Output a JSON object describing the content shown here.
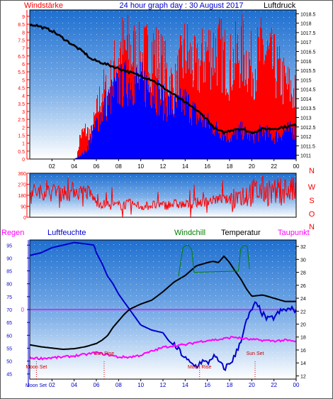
{
  "header": {
    "left_label": "Windstärke",
    "title": "24 hour graph day : 30 August 2017",
    "right_label": "Luftdruck"
  },
  "colors": {
    "wind_red": "#ff0000",
    "wind_blue": "#0000ff",
    "pressure": "#000000",
    "direction": "#ff0000",
    "humidity": "#0000cc",
    "temperature": "#000000",
    "dewpoint": "#ff00ff",
    "windchill": "#008000",
    "rain": "#ff00ff",
    "events": "#cc0000",
    "axis_left": "#ff0000",
    "axis_hum": "#0000cc"
  },
  "chart_data": [
    {
      "type": "line",
      "name": "wind-pressure",
      "x_ticks": [
        "02",
        "04",
        "06",
        "08",
        "10",
        "12",
        "14",
        "16",
        "18",
        "20",
        "22",
        "00"
      ],
      "y_left_ticks": [
        "0",
        "0.5",
        "1",
        "1.5",
        "2",
        "2.5",
        "3",
        "3.5",
        "4",
        "4.5",
        "5",
        "5.5",
        "6",
        "6.5",
        "7",
        "7.5",
        "8",
        "8.5",
        "9"
      ],
      "y_right_ticks": [
        "1011",
        "1011.5",
        "1012",
        "1012.5",
        "1013",
        "1013.5",
        "1014",
        "1014.5",
        "1015",
        "1015.5",
        "1016",
        "1016.5",
        "1017",
        "1017.5",
        "1018",
        "1018.5"
      ],
      "ylim_left": [
        0,
        9.4
      ],
      "ylim_right": [
        1010.8,
        1018.7
      ],
      "xlim": [
        0,
        24
      ],
      "series": [
        {
          "key": "pressure",
          "values": [
            [
              0,
              1017.9
            ],
            [
              0.5,
              1017.9
            ],
            [
              1,
              1017.8
            ],
            [
              1.5,
              1017.7
            ],
            [
              2,
              1017.6
            ],
            [
              2.5,
              1017.4
            ],
            [
              3,
              1017.2
            ],
            [
              3.5,
              1017.0
            ],
            [
              4,
              1016.8
            ],
            [
              4.5,
              1016.6
            ],
            [
              5,
              1016.4
            ],
            [
              5.5,
              1016.1
            ],
            [
              6,
              1016.0
            ],
            [
              7,
              1015.8
            ],
            [
              8,
              1015.6
            ],
            [
              9,
              1015.4
            ],
            [
              10,
              1015.2
            ],
            [
              11,
              1015.0
            ],
            [
              12,
              1014.6
            ],
            [
              13,
              1014.2
            ],
            [
              14,
              1013.8
            ],
            [
              15,
              1013.4
            ],
            [
              16,
              1012.9
            ],
            [
              16.5,
              1012.5
            ],
            [
              17,
              1012.3
            ],
            [
              17.5,
              1012.2
            ],
            [
              18,
              1012.3
            ],
            [
              18.5,
              1012.4
            ],
            [
              19,
              1012.4
            ],
            [
              19.5,
              1012.3
            ],
            [
              20,
              1012.2
            ],
            [
              21,
              1012.4
            ],
            [
              22,
              1012.4
            ],
            [
              23,
              1012.5
            ],
            [
              24,
              1012.6
            ]
          ]
        },
        {
          "key": "gust_envelope",
          "values": [
            [
              0,
              0
            ],
            [
              4.2,
              0
            ],
            [
              4.5,
              2
            ],
            [
              5,
              2.5
            ],
            [
              5.5,
              2.2
            ],
            [
              6,
              4
            ],
            [
              6.5,
              6
            ],
            [
              7,
              5.5
            ],
            [
              8,
              9.4
            ],
            [
              9,
              9.4
            ],
            [
              10,
              8.5
            ],
            [
              11,
              9.4
            ],
            [
              12,
              8
            ],
            [
              13,
              6
            ],
            [
              14,
              9.4
            ],
            [
              15,
              7.5
            ],
            [
              16,
              9.4
            ],
            [
              17,
              9.4
            ],
            [
              18,
              8
            ],
            [
              19,
              9.4
            ],
            [
              20,
              8
            ],
            [
              21,
              9.4
            ],
            [
              22,
              8
            ],
            [
              23,
              6.5
            ],
            [
              24,
              5.5
            ]
          ]
        },
        {
          "key": "average_envelope",
          "values": [
            [
              0,
              0
            ],
            [
              4,
              0
            ],
            [
              5,
              0.5
            ],
            [
              6,
              2.5
            ],
            [
              7,
              4
            ],
            [
              8,
              5
            ],
            [
              9,
              5.5
            ],
            [
              10,
              5.2
            ],
            [
              11,
              5
            ],
            [
              12,
              4
            ],
            [
              13,
              3.5
            ],
            [
              14,
              4
            ],
            [
              15,
              3
            ],
            [
              16,
              2.5
            ],
            [
              17,
              2
            ],
            [
              18,
              1.5
            ],
            [
              19,
              2
            ],
            [
              20,
              1.5
            ],
            [
              21,
              2
            ],
            [
              22,
              1.5
            ],
            [
              23,
              2
            ],
            [
              24,
              2
            ]
          ]
        }
      ]
    },
    {
      "type": "line",
      "name": "wind-direction",
      "x_ticks": [
        "02",
        "04",
        "06",
        "08",
        "10",
        "12",
        "14",
        "16",
        "18",
        "20",
        "22",
        "00"
      ],
      "y_ticks": [
        "0",
        "90",
        "180",
        "270",
        "360"
      ],
      "compass_labels": [
        "N",
        "W",
        "S",
        "O",
        "N"
      ],
      "ylim": [
        0,
        360
      ],
      "series": [
        {
          "key": "direction",
          "values": [
            [
              0,
              225
            ],
            [
              0.5,
              210
            ],
            [
              1,
              200
            ],
            [
              1.5,
              220
            ],
            [
              2,
              190
            ],
            [
              2.5,
              230
            ],
            [
              3,
              210
            ],
            [
              3.5,
              190
            ],
            [
              4,
              230
            ],
            [
              4.5,
              200
            ],
            [
              5,
              210
            ],
            [
              5.5,
              190
            ],
            [
              6,
              120
            ],
            [
              7,
              100
            ],
            [
              8,
              95
            ],
            [
              9,
              110
            ],
            [
              10,
              90
            ],
            [
              11,
              100
            ],
            [
              12,
              95
            ],
            [
              13,
              110
            ],
            [
              14,
              100
            ],
            [
              15,
              120
            ],
            [
              16,
              130
            ],
            [
              17,
              150
            ],
            [
              18,
              140
            ],
            [
              19,
              180
            ],
            [
              20,
              200
            ],
            [
              21,
              220
            ],
            [
              22,
              190
            ],
            [
              23,
              230
            ],
            [
              24,
              210
            ]
          ]
        }
      ]
    },
    {
      "type": "line",
      "name": "humidity-temperature",
      "x_ticks": [
        "02",
        "04",
        "06",
        "08",
        "10",
        "12",
        "14",
        "16",
        "18",
        "20",
        "22",
        "00"
      ],
      "y_left_ticks": [
        "45",
        "50",
        "55",
        "60",
        "65",
        "70",
        "75",
        "80",
        "85",
        "90",
        "95"
      ],
      "y_right_ticks": [
        "12",
        "14",
        "16",
        "18",
        "20",
        "22",
        "24",
        "26",
        "28",
        "30",
        "32"
      ],
      "ylim_left": [
        43,
        97
      ],
      "ylim_right": [
        11.5,
        33.0
      ],
      "rain_zero_label": "0",
      "labels": {
        "rain": "Regen",
        "humidity": "Luftfeuchte",
        "windchill": "Windchill",
        "temperature": "Temperatur",
        "dewpoint": "Taupunkt"
      },
      "events": [
        {
          "key": "moon_set",
          "label": "Moon Set",
          "x": 0.6
        },
        {
          "key": "sun_rise",
          "label": "Sun Rise",
          "x": 6.7
        },
        {
          "key": "moon_rise",
          "label": "Moon Rise",
          "x": 15.3
        },
        {
          "key": "sun_set",
          "label": "Sun Set",
          "x": 20.3
        }
      ],
      "series": [
        {
          "key": "humidity",
          "axis": "left",
          "values": [
            [
              0,
              91
            ],
            [
              1,
              92
            ],
            [
              2,
              94
            ],
            [
              3,
              95
            ],
            [
              4,
              96
            ],
            [
              5,
              95.5
            ],
            [
              5.8,
              95
            ],
            [
              6,
              92
            ],
            [
              6.5,
              88
            ],
            [
              7,
              83
            ],
            [
              7.5,
              80
            ],
            [
              8,
              76
            ],
            [
              8.5,
              73
            ],
            [
              9,
              70
            ],
            [
              9.5,
              67
            ],
            [
              10,
              64
            ],
            [
              10.5,
              63
            ],
            [
              11,
              62
            ],
            [
              12,
              61
            ],
            [
              12.5,
              58
            ],
            [
              13,
              56
            ],
            [
              13.5,
              54
            ],
            [
              14,
              51
            ],
            [
              14.5,
              49
            ],
            [
              15,
              48
            ],
            [
              15.5,
              50
            ],
            [
              16,
              49
            ],
            [
              16.5,
              52
            ],
            [
              17,
              50
            ],
            [
              17.5,
              47
            ],
            [
              18,
              49
            ],
            [
              18.5,
              52
            ],
            [
              19,
              58
            ],
            [
              19.5,
              65
            ],
            [
              20,
              70
            ],
            [
              20.3,
              72
            ],
            [
              20.8,
              70
            ],
            [
              21,
              68
            ],
            [
              21.5,
              66
            ],
            [
              22,
              67
            ],
            [
              22.5,
              69
            ],
            [
              23,
              70
            ],
            [
              23.5,
              70
            ],
            [
              24,
              70
            ]
          ]
        },
        {
          "key": "temperature",
          "axis": "right",
          "values": [
            [
              0,
              16.8
            ],
            [
              1,
              16.5
            ],
            [
              2,
              16.3
            ],
            [
              3,
              16.1
            ],
            [
              4,
              16.2
            ],
            [
              5,
              16.5
            ],
            [
              6,
              17
            ],
            [
              6.5,
              17.5
            ],
            [
              7,
              18.2
            ],
            [
              7.5,
              19.5
            ],
            [
              8,
              20.5
            ],
            [
              8.5,
              21.5
            ],
            [
              9,
              22.3
            ],
            [
              9.5,
              22.7
            ],
            [
              10,
              23.1
            ],
            [
              11,
              23.7
            ],
            [
              12,
              25
            ],
            [
              13,
              26.5
            ],
            [
              14,
              27.5
            ],
            [
              15,
              29
            ],
            [
              16,
              29.5
            ],
            [
              16.5,
              29.7
            ],
            [
              17,
              29.5
            ],
            [
              17.5,
              30.5
            ],
            [
              18,
              29.5
            ],
            [
              18.5,
              28.2
            ],
            [
              19,
              27
            ],
            [
              19.5,
              25.5
            ],
            [
              20,
              24.3
            ],
            [
              21,
              24.5
            ],
            [
              22,
              24
            ],
            [
              23,
              23.5
            ],
            [
              24,
              23.5
            ]
          ]
        },
        {
          "key": "dewpoint",
          "axis": "right",
          "values": [
            [
              0,
              14.8
            ],
            [
              1,
              14.7
            ],
            [
              2,
              14.8
            ],
            [
              3,
              14.9
            ],
            [
              4,
              15.1
            ],
            [
              5,
              15.3
            ],
            [
              6,
              15.6
            ],
            [
              6.5,
              15.4
            ],
            [
              7,
              15.3
            ],
            [
              8,
              14.9
            ],
            [
              9,
              14.9
            ],
            [
              10,
              15.2
            ],
            [
              11,
              15.8
            ],
            [
              12,
              16.4
            ],
            [
              13,
              16.7
            ],
            [
              14,
              16.8
            ],
            [
              15,
              17.2
            ],
            [
              16,
              17.5
            ],
            [
              17,
              17.6
            ],
            [
              18,
              17.9
            ],
            [
              18.5,
              18
            ],
            [
              19,
              17.8
            ],
            [
              20,
              17.6
            ],
            [
              21,
              17.5
            ],
            [
              22,
              17.4
            ],
            [
              23,
              17.5
            ],
            [
              24,
              17.3
            ]
          ]
        },
        {
          "key": "windchill",
          "axis": "right",
          "values": [
            [
              13.4,
              27.4
            ],
            [
              13.8,
              31.8
            ],
            [
              14.0,
              32.1
            ],
            [
              14.3,
              32.2
            ],
            [
              14.6,
              31.5
            ],
            [
              14.8,
              28.0
            ],
            [
              18.8,
              28.2
            ],
            [
              19.0,
              31.6
            ],
            [
              19.3,
              32.2
            ],
            [
              19.6,
              32.0
            ],
            [
              19.8,
              28.5
            ]
          ]
        }
      ]
    }
  ]
}
